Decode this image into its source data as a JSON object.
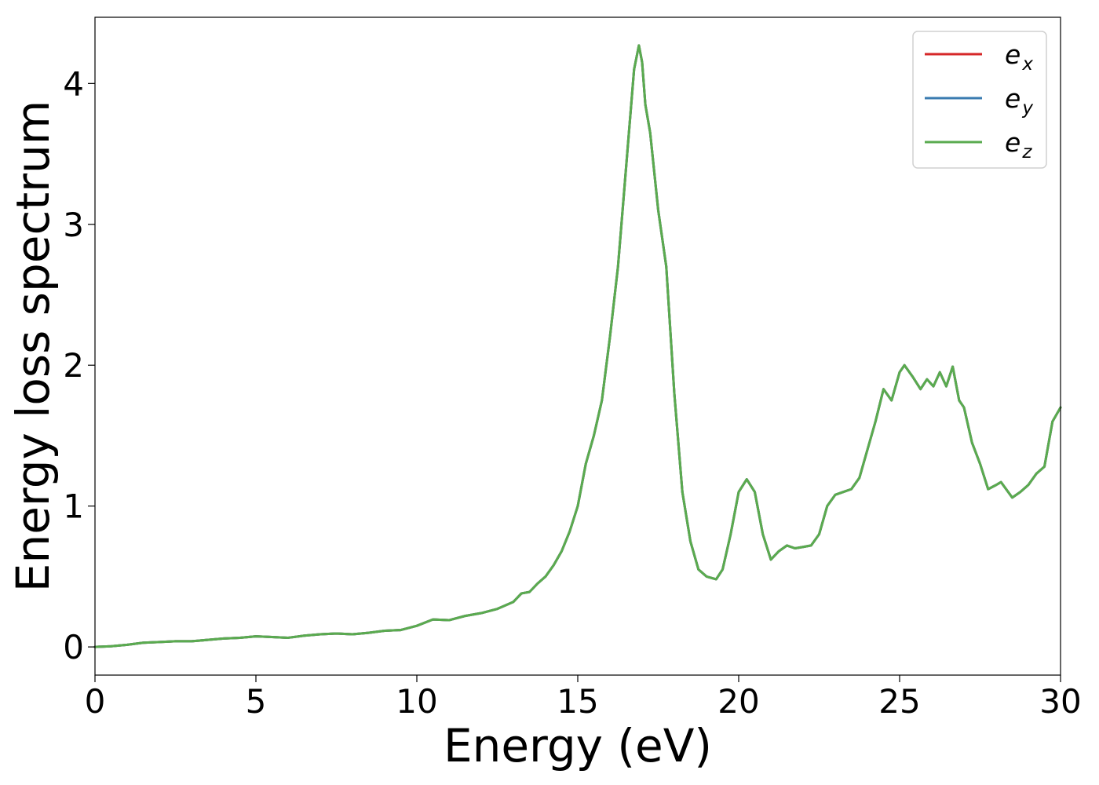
{
  "chart_data": {
    "type": "line",
    "xlabel": "Energy (eV)",
    "ylabel": "Energy loss spectrum",
    "xlim": [
      0,
      30
    ],
    "ylim": [
      -0.2,
      4.47
    ],
    "xticks": [
      {
        "value": 0,
        "label": "0"
      },
      {
        "value": 5,
        "label": "5"
      },
      {
        "value": 10,
        "label": "10"
      },
      {
        "value": 15,
        "label": "15"
      },
      {
        "value": 20,
        "label": "20"
      },
      {
        "value": 25,
        "label": "25"
      },
      {
        "value": 30,
        "label": "30"
      }
    ],
    "yticks": [
      {
        "value": 0,
        "label": "0"
      },
      {
        "value": 1,
        "label": "1"
      },
      {
        "value": 2,
        "label": "2"
      },
      {
        "value": 3,
        "label": "3"
      },
      {
        "value": 4,
        "label": "4"
      }
    ],
    "grid": false,
    "legend_position": "top-right",
    "series": [
      {
        "name": "e",
        "subscript": "x",
        "color": "#d62728"
      },
      {
        "name": "e",
        "subscript": "y",
        "color": "#3a7bb0"
      },
      {
        "name": "e",
        "subscript": "z",
        "color": "#5aab4f"
      }
    ],
    "points": [
      [
        0.0,
        0.0
      ],
      [
        0.5,
        0.005
      ],
      [
        1.0,
        0.015
      ],
      [
        1.5,
        0.03
      ],
      [
        2.0,
        0.035
      ],
      [
        2.5,
        0.04
      ],
      [
        3.0,
        0.04
      ],
      [
        3.5,
        0.05
      ],
      [
        4.0,
        0.06
      ],
      [
        4.5,
        0.065
      ],
      [
        5.0,
        0.075
      ],
      [
        5.5,
        0.07
      ],
      [
        6.0,
        0.065
      ],
      [
        6.5,
        0.08
      ],
      [
        7.0,
        0.09
      ],
      [
        7.5,
        0.095
      ],
      [
        8.0,
        0.09
      ],
      [
        8.5,
        0.1
      ],
      [
        9.0,
        0.115
      ],
      [
        9.5,
        0.12
      ],
      [
        10.0,
        0.15
      ],
      [
        10.5,
        0.195
      ],
      [
        11.0,
        0.19
      ],
      [
        11.5,
        0.22
      ],
      [
        12.0,
        0.24
      ],
      [
        12.5,
        0.27
      ],
      [
        13.0,
        0.32
      ],
      [
        13.25,
        0.38
      ],
      [
        13.5,
        0.39
      ],
      [
        13.75,
        0.45
      ],
      [
        14.0,
        0.5
      ],
      [
        14.25,
        0.58
      ],
      [
        14.5,
        0.68
      ],
      [
        14.75,
        0.82
      ],
      [
        15.0,
        1.0
      ],
      [
        15.25,
        1.3
      ],
      [
        15.5,
        1.5
      ],
      [
        15.75,
        1.75
      ],
      [
        16.0,
        2.2
      ],
      [
        16.25,
        2.7
      ],
      [
        16.5,
        3.4
      ],
      [
        16.75,
        4.1
      ],
      [
        16.9,
        4.27
      ],
      [
        17.0,
        4.15
      ],
      [
        17.1,
        3.85
      ],
      [
        17.25,
        3.65
      ],
      [
        17.5,
        3.1
      ],
      [
        17.75,
        2.7
      ],
      [
        18.0,
        1.8
      ],
      [
        18.25,
        1.1
      ],
      [
        18.5,
        0.75
      ],
      [
        18.75,
        0.55
      ],
      [
        19.0,
        0.5
      ],
      [
        19.3,
        0.48
      ],
      [
        19.5,
        0.55
      ],
      [
        19.75,
        0.8
      ],
      [
        20.0,
        1.1
      ],
      [
        20.25,
        1.19
      ],
      [
        20.5,
        1.1
      ],
      [
        20.75,
        0.8
      ],
      [
        21.0,
        0.62
      ],
      [
        21.25,
        0.68
      ],
      [
        21.5,
        0.72
      ],
      [
        21.75,
        0.7
      ],
      [
        22.0,
        0.71
      ],
      [
        22.25,
        0.72
      ],
      [
        22.5,
        0.8
      ],
      [
        22.75,
        1.0
      ],
      [
        23.0,
        1.08
      ],
      [
        23.25,
        1.1
      ],
      [
        23.5,
        1.12
      ],
      [
        23.75,
        1.2
      ],
      [
        24.0,
        1.4
      ],
      [
        24.25,
        1.6
      ],
      [
        24.5,
        1.83
      ],
      [
        24.75,
        1.75
      ],
      [
        25.0,
        1.95
      ],
      [
        25.15,
        2.0
      ],
      [
        25.4,
        1.92
      ],
      [
        25.65,
        1.83
      ],
      [
        25.85,
        1.9
      ],
      [
        26.05,
        1.85
      ],
      [
        26.25,
        1.95
      ],
      [
        26.45,
        1.85
      ],
      [
        26.65,
        1.99
      ],
      [
        26.85,
        1.75
      ],
      [
        27.0,
        1.7
      ],
      [
        27.25,
        1.45
      ],
      [
        27.5,
        1.3
      ],
      [
        27.75,
        1.12
      ],
      [
        28.0,
        1.15
      ],
      [
        28.15,
        1.17
      ],
      [
        28.5,
        1.06
      ],
      [
        28.75,
        1.1
      ],
      [
        29.0,
        1.15
      ],
      [
        29.25,
        1.23
      ],
      [
        29.5,
        1.28
      ],
      [
        29.75,
        1.6
      ],
      [
        30.0,
        1.7
      ]
    ]
  }
}
